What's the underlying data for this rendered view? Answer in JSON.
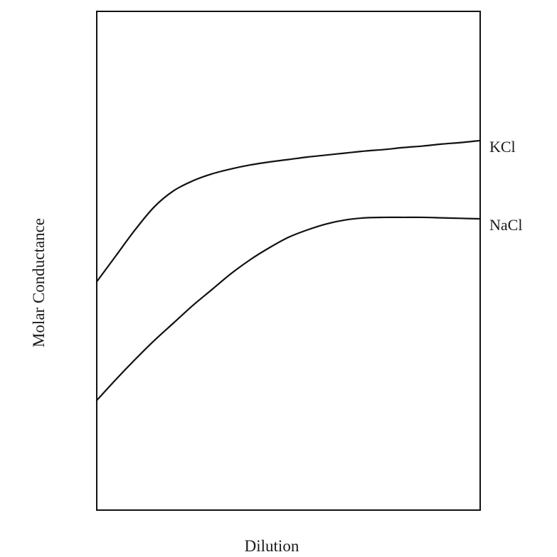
{
  "chart_data": {
    "type": "line",
    "title": "",
    "xlabel": "Dilution",
    "ylabel": "Molar Conductance",
    "xlim": [
      0,
      1
    ],
    "ylim": [
      0,
      1
    ],
    "grid": false,
    "legend": "series labels at right end of lines",
    "x": [
      0,
      0.05,
      0.1,
      0.15,
      0.2,
      0.25,
      0.3,
      0.35,
      0.4,
      0.45,
      0.5,
      0.55,
      0.6,
      0.65,
      0.7,
      0.75,
      0.8,
      0.85,
      0.9,
      0.95,
      1.0
    ],
    "series": [
      {
        "name": "KCl",
        "values": [
          0.458,
          0.51,
          0.562,
          0.608,
          0.64,
          0.66,
          0.674,
          0.684,
          0.692,
          0.698,
          0.703,
          0.708,
          0.712,
          0.716,
          0.72,
          0.723,
          0.727,
          0.73,
          0.734,
          0.737,
          0.741
        ]
      },
      {
        "name": "NaCl",
        "values": [
          0.22,
          0.262,
          0.302,
          0.34,
          0.375,
          0.41,
          0.442,
          0.474,
          0.502,
          0.526,
          0.547,
          0.562,
          0.574,
          0.582,
          0.586,
          0.587,
          0.587,
          0.587,
          0.586,
          0.585,
          0.584
        ]
      }
    ]
  }
}
